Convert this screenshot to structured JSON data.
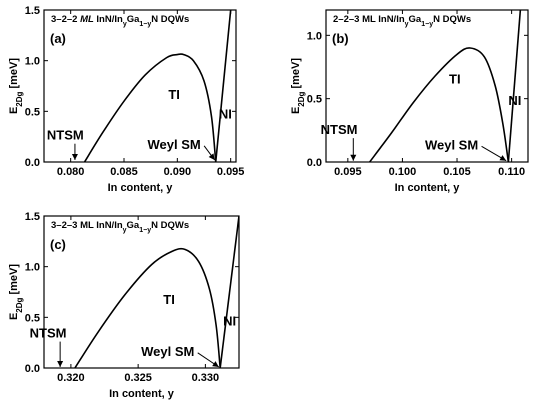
{
  "chart_data": [
    {
      "type": "line",
      "panel_label": "(a)",
      "title": "3–2–2 ML InN/InyGa1−yN DQWs",
      "xlabel": "In content, y",
      "ylabel": "E2Dg [meV]",
      "xlim": [
        0.0775,
        0.0955
      ],
      "ylim": [
        0,
        1.5
      ],
      "xticks": [
        0.08,
        0.085,
        0.09,
        0.095
      ],
      "xtick_labels": [
        "0.080",
        "0.085",
        "0.090",
        "0.095"
      ],
      "yticks": [
        0.0,
        0.5,
        1.0,
        1.5
      ],
      "ytick_labels": [
        "0.0",
        "0.5",
        "1.0",
        "1.5"
      ],
      "series": [
        {
          "x": [
            0.0813,
            0.083,
            0.085,
            0.087,
            0.089,
            0.09,
            0.0906,
            0.0915,
            0.0925,
            0.0932,
            0.0936
          ],
          "y": [
            0.0,
            0.29,
            0.6,
            0.86,
            1.03,
            1.06,
            1.06,
            1.0,
            0.8,
            0.45,
            0.0
          ]
        },
        {
          "x": [
            0.0936,
            0.095
          ],
          "y": [
            0.0,
            1.5
          ]
        }
      ],
      "annotations": [
        {
          "text": "TI",
          "x": 0.0897,
          "y": 0.62
        },
        {
          "text": "NI",
          "x": 0.0945,
          "y": 0.43
        },
        {
          "text": "NTSM",
          "x": 0.0795,
          "y": 0.22,
          "arrow_to": [
            0.0804,
            0.02
          ]
        },
        {
          "text": "Weyl SM",
          "x": 0.0897,
          "y": 0.13,
          "arrow_to": [
            0.0935,
            0.02
          ]
        }
      ]
    },
    {
      "type": "line",
      "panel_label": "(b)",
      "title": "2–2–3 ML InN/InyGa1−yN DQWs",
      "xlabel": "In content, y",
      "ylabel": "E2Dg [meV]",
      "xlim": [
        0.093,
        0.1115
      ],
      "ylim": [
        0,
        1.2
      ],
      "xticks": [
        0.095,
        0.1,
        0.105,
        0.11
      ],
      "xtick_labels": [
        "0.095",
        "0.100",
        "0.105",
        "0.110"
      ],
      "yticks": [
        0.0,
        0.5,
        1.0
      ],
      "ytick_labels": [
        "0.0",
        "0.5",
        "1.0"
      ],
      "series": [
        {
          "x": [
            0.097,
            0.099,
            0.101,
            0.103,
            0.105,
            0.1062,
            0.1075,
            0.1085,
            0.1092,
            0.1097
          ],
          "y": [
            0.0,
            0.23,
            0.47,
            0.68,
            0.85,
            0.9,
            0.83,
            0.6,
            0.3,
            0.0
          ]
        },
        {
          "x": [
            0.1097,
            0.1108
          ],
          "y": [
            0.0,
            1.2
          ]
        }
      ],
      "annotations": [
        {
          "text": "TI",
          "x": 0.1048,
          "y": 0.62
        },
        {
          "text": "NI",
          "x": 0.1103,
          "y": 0.45
        },
        {
          "text": "NTSM",
          "x": 0.0942,
          "y": 0.22,
          "arrow_to": [
            0.0955,
            0.01
          ]
        },
        {
          "text": "Weyl SM",
          "x": 0.1045,
          "y": 0.1,
          "arrow_to": [
            0.1095,
            0.01
          ]
        }
      ]
    },
    {
      "type": "line",
      "panel_label": "(c)",
      "title": "3–2–3 ML InN/InyGa1−yN DQWs",
      "xlabel": "In content, y",
      "ylabel": "E2Dg [meV]",
      "xlim": [
        0.318,
        0.3325
      ],
      "ylim": [
        0,
        1.5
      ],
      "xticks": [
        0.32,
        0.325,
        0.33
      ],
      "xtick_labels": [
        "0.320",
        "0.325",
        "0.330"
      ],
      "yticks": [
        0.0,
        0.5,
        1.0,
        1.5
      ],
      "ytick_labels": [
        "0.0",
        "0.5",
        "1.0",
        "1.5"
      ],
      "series": [
        {
          "x": [
            0.3203,
            0.322,
            0.324,
            0.326,
            0.3275,
            0.3285,
            0.3295,
            0.3303,
            0.3308,
            0.3311
          ],
          "y": [
            0.0,
            0.35,
            0.72,
            1.02,
            1.15,
            1.17,
            1.05,
            0.78,
            0.42,
            0.0
          ]
        },
        {
          "x": [
            0.3311,
            0.3325
          ],
          "y": [
            0.0,
            1.5
          ]
        }
      ],
      "annotations": [
        {
          "text": "TI",
          "x": 0.3273,
          "y": 0.63
        },
        {
          "text": "NI",
          "x": 0.3318,
          "y": 0.42
        },
        {
          "text": "NTSM",
          "x": 0.3183,
          "y": 0.3,
          "arrow_to": [
            0.3192,
            0.01
          ]
        },
        {
          "text": "Weyl SM",
          "x": 0.3272,
          "y": 0.12,
          "arrow_to": [
            0.331,
            0.01
          ]
        }
      ]
    }
  ]
}
